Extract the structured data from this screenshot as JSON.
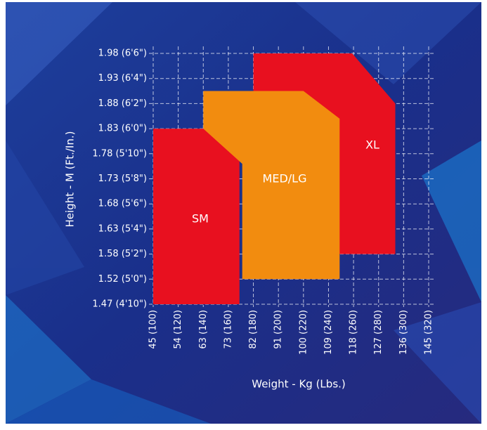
{
  "chart_data": {
    "type": "region",
    "x_label": "Weight - Kg (Lbs.)",
    "y_label": "Height - M (Ft./In.)",
    "xlim": [
      45,
      145
    ],
    "ylim": [
      1.47,
      1.98
    ],
    "xticks": [
      {
        "value": 45,
        "label": "45 (100)"
      },
      {
        "value": 54,
        "label": "54 (120)"
      },
      {
        "value": 63,
        "label": "63 (140)"
      },
      {
        "value": 73,
        "label": "73 (160)"
      },
      {
        "value": 82,
        "label": "82 (180)"
      },
      {
        "value": 91,
        "label": "91 (200)"
      },
      {
        "value": 100,
        "label": "100 (220)"
      },
      {
        "value": 109,
        "label": "109 (240)"
      },
      {
        "value": 118,
        "label": "118 (260)"
      },
      {
        "value": 127,
        "label": "127 (280)"
      },
      {
        "value": 136,
        "label": "136 (300)"
      },
      {
        "value": 145,
        "label": "145 (320)"
      }
    ],
    "yticks": [
      {
        "value": 1.98,
        "label": "1.98 (6'6\")"
      },
      {
        "value": 1.93,
        "label": "1.93 (6'4\")"
      },
      {
        "value": 1.88,
        "label": "1.88 (6'2\")"
      },
      {
        "value": 1.83,
        "label": "1.83 (6'0\")"
      },
      {
        "value": 1.78,
        "label": "1.78 (5'10\")"
      },
      {
        "value": 1.73,
        "label": "1.73 (5'8\")"
      },
      {
        "value": 1.68,
        "label": "1.68 (5'6\")"
      },
      {
        "value": 1.63,
        "label": "1.63 (5'4\")"
      },
      {
        "value": 1.58,
        "label": "1.58 (5'2\")"
      },
      {
        "value": 1.52,
        "label": "1.52 (5'0\")"
      },
      {
        "value": 1.47,
        "label": "1.47 (4'10\")"
      }
    ],
    "grid": true,
    "regions": [
      {
        "name": "XL",
        "color": "#e8101f",
        "x": [
          82,
          117.5,
          133,
          133,
          82
        ],
        "y": [
          1.98,
          1.98,
          1.88,
          1.58,
          1.58
        ]
      },
      {
        "name": "SM",
        "color": "#e8101f",
        "x": [
          45,
          77,
          77,
          45
        ],
        "y": [
          1.83,
          1.83,
          1.47,
          1.47
        ]
      },
      {
        "name": "MED/LG",
        "color": "#f28c0f",
        "x": [
          63,
          100,
          113,
          113,
          78,
          78,
          63
        ],
        "y": [
          1.905,
          1.905,
          1.85,
          1.52,
          1.52,
          1.76,
          1.83
        ]
      }
    ]
  }
}
